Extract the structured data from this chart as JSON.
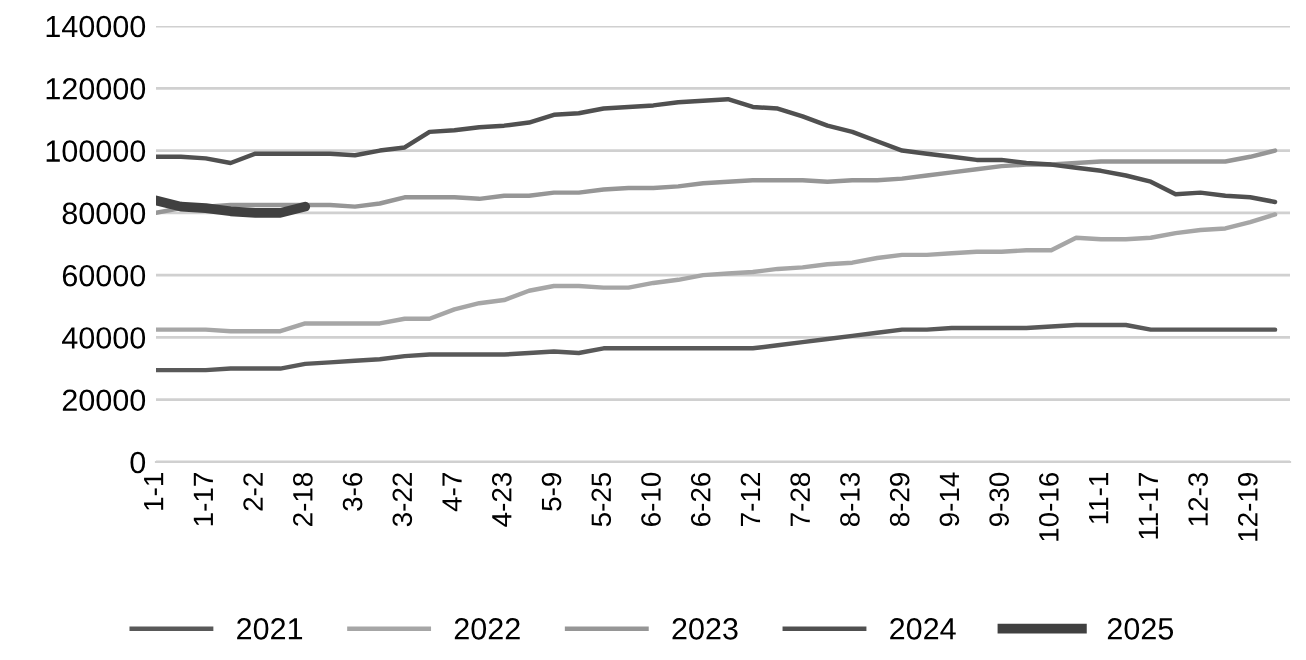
{
  "chart_data": {
    "type": "line",
    "categories": [
      "1-1",
      null,
      "1-17",
      null,
      "2-2",
      null,
      "2-18",
      null,
      "3-6",
      null,
      "3-22",
      null,
      "4-7",
      null,
      "4-23",
      null,
      "5-9",
      null,
      "5-25",
      null,
      "6-10",
      null,
      "6-26",
      null,
      "7-12",
      null,
      "7-28",
      null,
      "8-13",
      null,
      "8-29",
      null,
      "9-14",
      null,
      "9-30",
      null,
      "10-16",
      null,
      "11-1",
      null,
      "11-17",
      null,
      "12-3",
      null,
      "12-19",
      null
    ],
    "series": [
      {
        "name": "2021",
        "color": "#595959",
        "values": [
          29500,
          29500,
          29500,
          30000,
          30000,
          30000,
          31500,
          32000,
          32500,
          33000,
          34000,
          34500,
          34500,
          34500,
          34500,
          35000,
          35500,
          35000,
          36500,
          36500,
          36500,
          36500,
          36500,
          36500,
          36500,
          37500,
          38500,
          39500,
          40500,
          41500,
          42500,
          42500,
          43000,
          43000,
          43000,
          43000,
          43500,
          44000,
          44000,
          44000,
          42500,
          42500,
          42500,
          42500,
          42500,
          42500
        ]
      },
      {
        "name": "2022",
        "color": "#a6a6a6",
        "values": [
          42500,
          42500,
          42500,
          42000,
          42000,
          42000,
          44500,
          44500,
          44500,
          44500,
          46000,
          46000,
          49000,
          51000,
          52000,
          55000,
          56500,
          56500,
          56000,
          56000,
          57500,
          58500,
          60000,
          60500,
          61000,
          62000,
          62500,
          63500,
          64000,
          65500,
          66500,
          66500,
          67000,
          67500,
          67500,
          68000,
          68000,
          72000,
          71500,
          71500,
          72000,
          73500,
          74500,
          75000,
          77000,
          79500
        ]
      },
      {
        "name": "2023",
        "color": "#969696",
        "values": [
          80000,
          81500,
          82000,
          82500,
          82500,
          82500,
          82500,
          82500,
          82000,
          83000,
          85000,
          85000,
          85000,
          84500,
          85500,
          85500,
          86500,
          86500,
          87500,
          88000,
          88000,
          88500,
          89500,
          90000,
          90500,
          90500,
          90500,
          90000,
          90500,
          90500,
          91000,
          92000,
          93000,
          94000,
          95000,
          95500,
          95500,
          96000,
          96500,
          96500,
          96500,
          96500,
          96500,
          96500,
          98000,
          100000
        ]
      },
      {
        "name": "2024",
        "color": "#505050",
        "values": [
          98000,
          98000,
          97500,
          96000,
          99000,
          99000,
          99000,
          99000,
          98500,
          100000,
          101000,
          106000,
          106500,
          107500,
          108000,
          109000,
          111500,
          112000,
          113500,
          114000,
          114500,
          115500,
          116000,
          116500,
          114000,
          113500,
          111000,
          108000,
          106000,
          103000,
          100000,
          99000,
          98000,
          97000,
          97000,
          96000,
          95500,
          94500,
          93500,
          92000,
          90000,
          86000,
          86500,
          85500,
          85000,
          83500
        ]
      },
      {
        "name": "2025",
        "color": "#404040",
        "values": [
          84000,
          82000,
          81500,
          80500,
          80000,
          80000,
          82000,
          null,
          null,
          null,
          null,
          null,
          null,
          null,
          null,
          null,
          null,
          null,
          null,
          null,
          null,
          null,
          null,
          null,
          null,
          null,
          null,
          null,
          null,
          null,
          null,
          null,
          null,
          null,
          null,
          null,
          null,
          null,
          null,
          null,
          null,
          null,
          null,
          null,
          null,
          null
        ]
      }
    ],
    "ylim": [
      0,
      140000
    ],
    "yticks": [
      0,
      20000,
      40000,
      60000,
      80000,
      100000,
      120000,
      140000
    ],
    "grid": "y",
    "legend": "bottom"
  }
}
